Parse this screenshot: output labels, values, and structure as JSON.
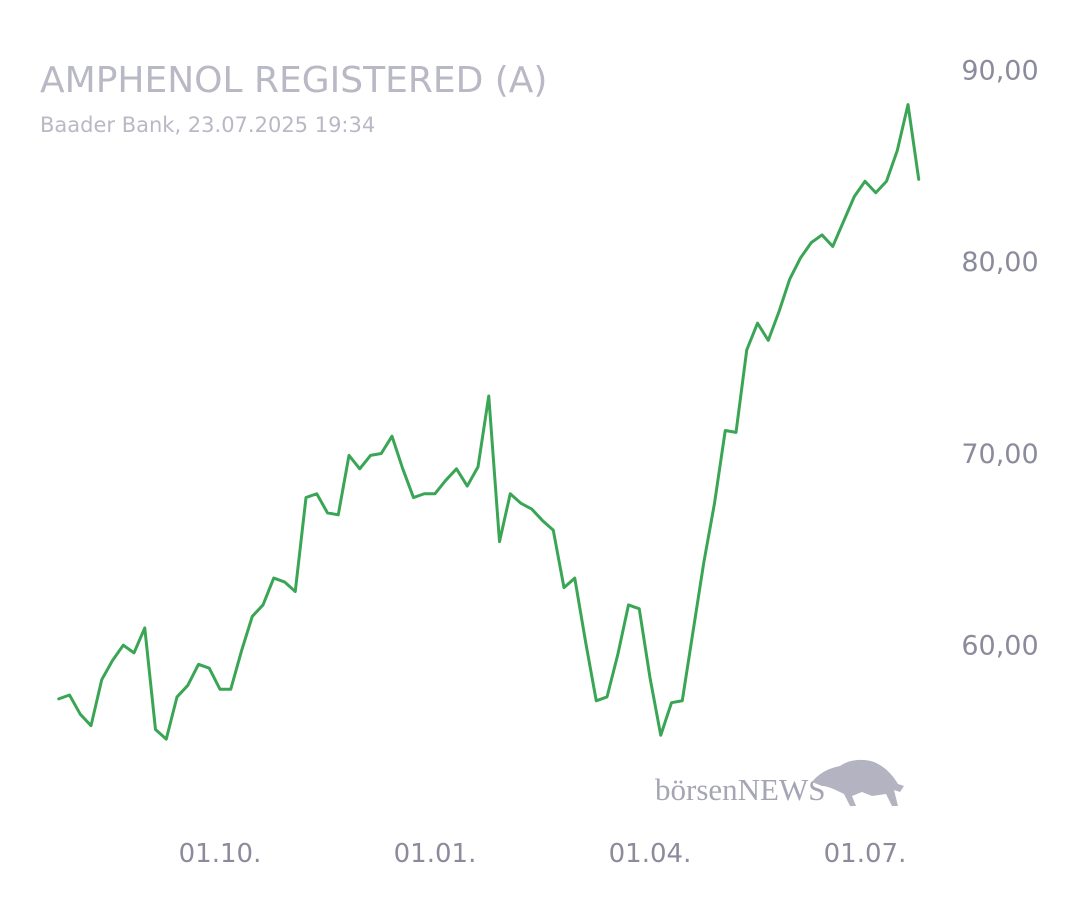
{
  "chart_data": {
    "type": "line",
    "title": "AMPHENOL REGISTERED (A)",
    "subtitle": "Baader Bank, 23.07.2025 19:34",
    "watermark": "börsenNEWS",
    "color": "#3aa655",
    "grid": false,
    "y_axis_side": "right",
    "ylim": [
      53,
      91
    ],
    "yticks": [
      {
        "value": 60,
        "label": "60,00"
      },
      {
        "value": 70,
        "label": "70,00"
      },
      {
        "value": 80,
        "label": "80,00"
      },
      {
        "value": 90,
        "label": "90,00"
      }
    ],
    "categories": [
      null,
      null,
      null,
      null,
      null,
      null,
      null,
      null,
      null,
      null,
      null,
      null,
      null,
      null,
      null,
      "01.10.",
      null,
      null,
      null,
      null,
      null,
      null,
      null,
      null,
      null,
      null,
      null,
      null,
      null,
      null,
      null,
      null,
      null,
      null,
      null,
      "01.01.",
      null,
      null,
      null,
      null,
      null,
      null,
      null,
      null,
      null,
      null,
      null,
      null,
      null,
      null,
      null,
      null,
      null,
      null,
      null,
      "01.04.",
      null,
      null,
      null,
      null,
      null,
      null,
      null,
      null,
      null,
      null,
      null,
      null,
      null,
      null,
      null,
      null,
      null,
      null,
      null,
      "01.07.",
      null,
      null,
      null,
      null,
      null
    ],
    "values": [
      57.3,
      57.5,
      56.5,
      55.9,
      58.3,
      59.3,
      60.1,
      59.7,
      61.0,
      55.7,
      55.2,
      57.4,
      58.0,
      59.1,
      58.9,
      57.8,
      57.8,
      59.8,
      61.6,
      62.2,
      63.6,
      63.4,
      62.9,
      67.8,
      68.0,
      67.0,
      66.9,
      70.0,
      69.3,
      70.0,
      70.1,
      71.0,
      69.3,
      67.8,
      68.0,
      68.0,
      68.7,
      69.3,
      68.4,
      69.4,
      73.1,
      65.5,
      68.0,
      67.5,
      67.2,
      66.6,
      66.1,
      63.1,
      63.6,
      60.3,
      57.2,
      57.4,
      59.6,
      62.2,
      62.0,
      58.4,
      55.4,
      57.1,
      57.2,
      60.8,
      64.4,
      67.5,
      71.3,
      71.2,
      75.5,
      76.9,
      76.0,
      77.5,
      79.2,
      80.3,
      81.1,
      81.5,
      80.9,
      82.2,
      83.5,
      84.3,
      83.7,
      84.3,
      85.9,
      88.3,
      84.4
    ]
  }
}
